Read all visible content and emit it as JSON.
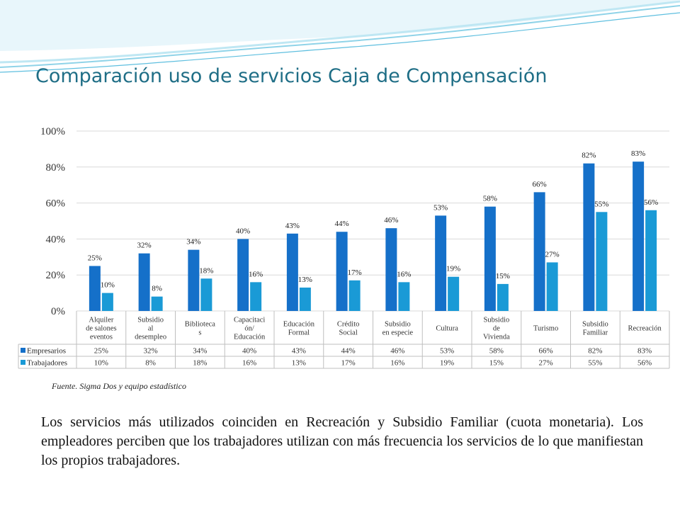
{
  "slide": {
    "title": "Comparación uso de servicios Caja de Compensación",
    "source": "Fuente. Sigma Dos y equipo estadístico",
    "body_text": "Los servicios más utilizados coinciden en Recreación y Subsidio Familiar (cuota monetaria). Los empleadores perciben que los trabajadores utilizan con más frecuencia los servicios de lo que manifiestan los propios trabajadores."
  },
  "colors": {
    "empresarios": "#1570c9",
    "trabajadores": "#1a9ad6",
    "title": "#1f6e86",
    "grid": "#d9d9d9"
  },
  "chart_data": {
    "type": "bar",
    "categories": [
      "Alquiler de salones eventos",
      "Subsidio al desempleo",
      "Bibliotecas",
      "Capacitación/ Educación",
      "Educación Formal",
      "Crédito Social",
      "Subsidio en especie",
      "Cultura",
      "Subsidio de Vivienda",
      "Turismo",
      "Subsidio Familiar",
      "Recreación"
    ],
    "series": [
      {
        "name": "Empresarios",
        "values": [
          25,
          32,
          34,
          40,
          43,
          44,
          46,
          53,
          58,
          66,
          82,
          83
        ]
      },
      {
        "name": "Trabajadores",
        "values": [
          10,
          8,
          18,
          16,
          13,
          17,
          16,
          19,
          15,
          27,
          55,
          56
        ]
      }
    ],
    "y_ticks": [
      "0%",
      "20%",
      "40%",
      "60%",
      "80%",
      "100%"
    ],
    "ylim": [
      0,
      100
    ],
    "value_suffix": "%",
    "grid": true,
    "legend": "data table below chart"
  }
}
